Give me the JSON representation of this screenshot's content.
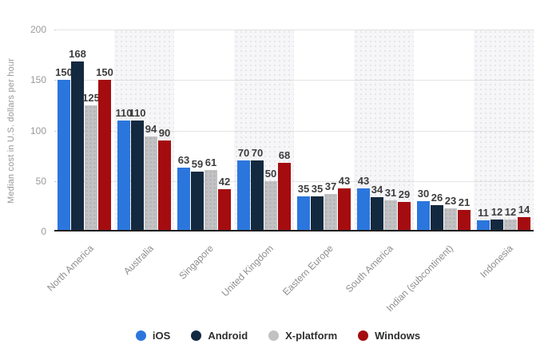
{
  "chart_data": {
    "type": "bar",
    "title": "",
    "ylabel": "Median cost in U.S. dollars per hour",
    "xlabel": "",
    "ylim": [
      0,
      200
    ],
    "yticks": [
      0,
      50,
      100,
      150,
      200
    ],
    "grid": "horizontal-dotted",
    "legend_position": "bottom",
    "categories": [
      "North America",
      "Australia",
      "Singapore",
      "United Kingdom",
      "Eastern Europe",
      "South America",
      "Indian (subcontinent)",
      "Indonesia"
    ],
    "series": [
      {
        "name": "iOS",
        "color": "#2b76dd",
        "values": [
          150,
          110,
          63,
          70,
          35,
          43,
          30,
          11
        ]
      },
      {
        "name": "Android",
        "color": "#13293f",
        "values": [
          168,
          110,
          59,
          70,
          35,
          34,
          26,
          12
        ]
      },
      {
        "name": "X-platform",
        "color": "#c2c2c4",
        "values": [
          125,
          94,
          61,
          50,
          37,
          31,
          23,
          12
        ],
        "texture": "dotted"
      },
      {
        "name": "Windows",
        "color": "#a40c10",
        "values": [
          150,
          90,
          42,
          68,
          43,
          29,
          21,
          14
        ]
      }
    ],
    "colors": {
      "band": "#f6f6f8",
      "gridline": "#c9c9c9",
      "axis_line": "#1d1d1d",
      "value_label": "#3d3d3d",
      "tick_label": "#9a9a9a",
      "category_label": "#8e8e8e"
    }
  }
}
